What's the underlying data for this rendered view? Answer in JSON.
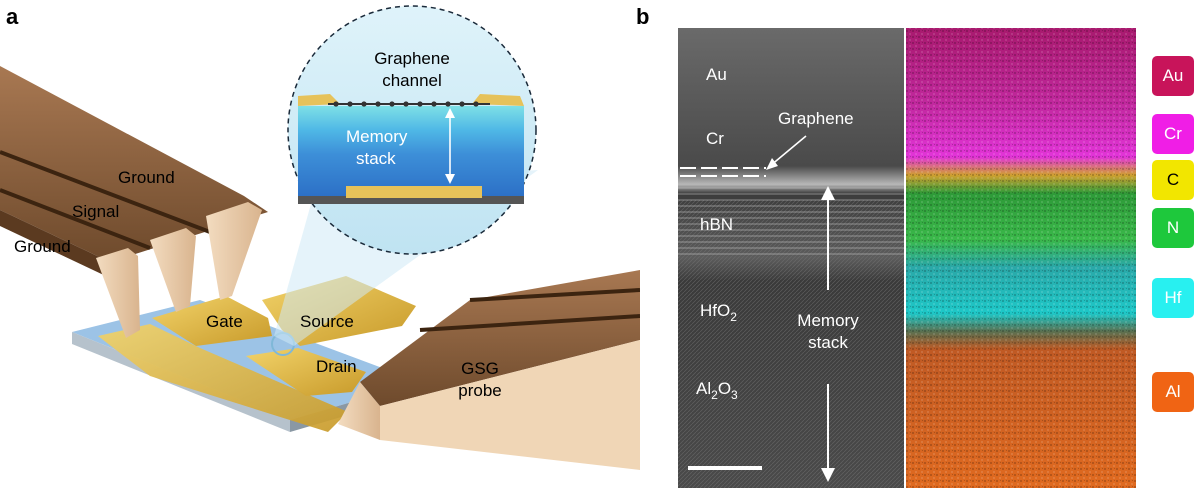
{
  "panel_a": {
    "letter": "a",
    "labels": {
      "ground_top": "Ground",
      "signal": "Signal",
      "ground_bottom": "Ground",
      "gate": "Gate",
      "source": "Source",
      "drain": "Drain",
      "probe_line1": "GSG",
      "probe_line2": "probe",
      "inset_title_line1": "Graphene",
      "inset_title_line2": "channel",
      "inset_stack_line1": "Memory",
      "inset_stack_line2": "stack"
    }
  },
  "panel_b": {
    "letter": "b",
    "labels": {
      "au": "Au",
      "cr": "Cr",
      "graphene": "Graphene",
      "hbn": "hBN",
      "hfo2_base": "HfO",
      "hfo2_sub": "2",
      "al2o3_a": "Al",
      "al2o3_sub1": "2",
      "al2o3_b": "O",
      "al2o3_sub2": "3",
      "memory_line1": "Memory",
      "memory_line2": "stack"
    },
    "legend": [
      {
        "label": "Au",
        "color": "#c8145a",
        "text_color": "#ffffff"
      },
      {
        "label": "Cr",
        "color": "#f01ee6",
        "text_color": "#ffffff"
      },
      {
        "label": "C",
        "color": "#f2e600",
        "text_color": "#000000"
      },
      {
        "label": "N",
        "color": "#1ec83c",
        "text_color": "#ffffff"
      },
      {
        "label": "Hf",
        "color": "#28f0f0",
        "text_color": "#ffffff"
      },
      {
        "label": "Al",
        "color": "#f06414",
        "text_color": "#ffffff"
      }
    ]
  }
}
